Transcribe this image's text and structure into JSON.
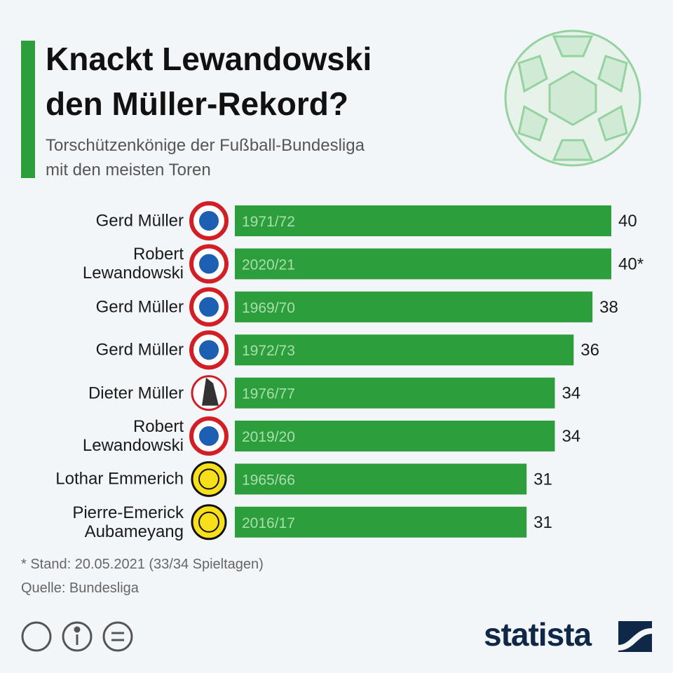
{
  "title": "Knackt Lewandowski\nden Müller-Rekord?",
  "subtitle": "Torschützenkönige der Fußball-Bundesliga\nmit den meisten Toren",
  "footnote": "* Stand: 20.05.2021 (33/34 Spieltagen)",
  "source": "Quelle: Bundesliga",
  "brand": "statista",
  "chart_data": {
    "type": "bar",
    "orientation": "horizontal",
    "color": "#2d9e3c",
    "categories": [
      "Gerd Müller",
      "Robert\nLewandowski",
      "Gerd Müller",
      "Gerd Müller",
      "Dieter Müller",
      "Robert\nLewandowski",
      "Lothar Emmerich",
      "Pierre-Emerick\nAubameyang"
    ],
    "seasons": [
      "1971/72",
      "2020/21",
      "1969/70",
      "1972/73",
      "1976/77",
      "2019/20",
      "1965/66",
      "2016/17"
    ],
    "values": [
      40,
      40,
      38,
      36,
      34,
      34,
      31,
      31
    ],
    "value_labels": [
      "40",
      "40*",
      "38",
      "36",
      "34",
      "34",
      "31",
      "31"
    ]
  }
}
